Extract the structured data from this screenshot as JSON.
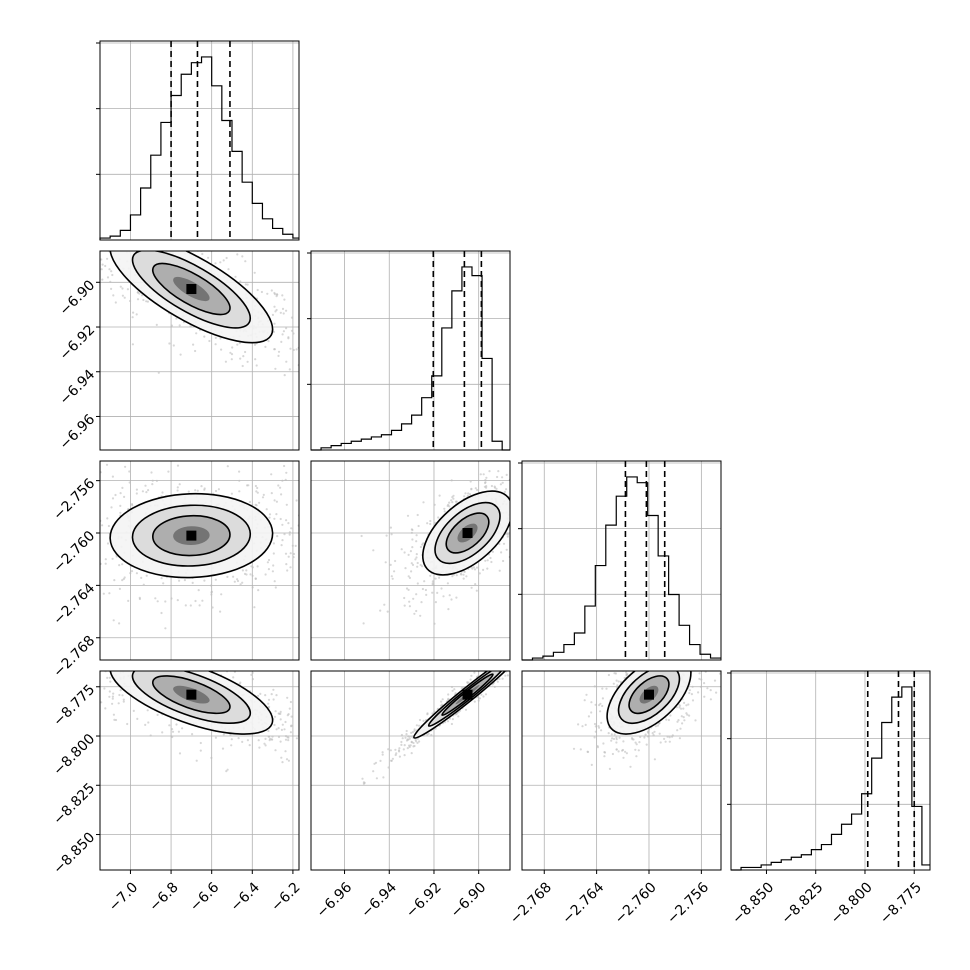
{
  "chart_data": {
    "type": "corner",
    "parameters": 4,
    "grid": true,
    "histograms": [
      {
        "param": 0,
        "range": [
          -7.15,
          -6.17
        ],
        "quantiles": [
          -6.8,
          -6.67,
          -6.51
        ],
        "bin_edges": [
          -7.15,
          -7.1,
          -7.05,
          -7.0,
          -6.95,
          -6.9,
          -6.85,
          -6.8,
          -6.75,
          -6.7,
          -6.65,
          -6.6,
          -6.55,
          -6.5,
          -6.45,
          -6.4,
          -6.35,
          -6.3,
          -6.25,
          -6.2,
          -6.17
        ],
        "counts": [
          0.01,
          0.02,
          0.05,
          0.13,
          0.27,
          0.44,
          0.61,
          0.75,
          0.86,
          0.92,
          0.95,
          0.8,
          0.62,
          0.46,
          0.3,
          0.19,
          0.11,
          0.06,
          0.03,
          0.01
        ]
      },
      {
        "param": 1,
        "range": [
          -6.975,
          -6.886
        ],
        "quantiles": [
          -6.9203,
          -6.9064,
          -6.8988
        ],
        "bin_edges": [
          -6.975,
          -6.9705,
          -6.966,
          -6.9615,
          -6.957,
          -6.9525,
          -6.948,
          -6.9435,
          -6.939,
          -6.9345,
          -6.93,
          -6.9255,
          -6.921,
          -6.9165,
          -6.912,
          -6.9075,
          -6.903,
          -6.8985,
          -6.894,
          -6.8895,
          -6.886
        ],
        "counts": [
          0.0,
          0.01,
          0.02,
          0.03,
          0.04,
          0.05,
          0.06,
          0.07,
          0.09,
          0.12,
          0.16,
          0.24,
          0.34,
          0.56,
          0.73,
          0.84,
          0.8,
          0.42,
          0.04,
          0.0
        ]
      },
      {
        "param": 2,
        "range": [
          -2.7697,
          -2.7545
        ],
        "quantiles": [
          -2.7618,
          -2.7602,
          -2.7588
        ],
        "bin_edges": [
          -2.7697,
          -2.7689,
          -2.7681,
          -2.7673,
          -2.7665,
          -2.7657,
          -2.7649,
          -2.7641,
          -2.7633,
          -2.7625,
          -2.7617,
          -2.7609,
          -2.7601,
          -2.7593,
          -2.7585,
          -2.7577,
          -2.7569,
          -2.7561,
          -2.7553,
          -2.7545
        ],
        "counts": [
          0.0,
          0.01,
          0.02,
          0.04,
          0.08,
          0.14,
          0.28,
          0.49,
          0.7,
          0.85,
          0.95,
          0.92,
          0.75,
          0.54,
          0.34,
          0.18,
          0.08,
          0.03,
          0.01
        ]
      },
      {
        "param": 3,
        "range": [
          -8.868,
          -8.767
        ],
        "quantiles": [
          -8.7986,
          -8.783,
          -8.775
        ],
        "bin_edges": [
          -8.868,
          -8.8629,
          -8.8578,
          -8.8527,
          -8.8476,
          -8.8425,
          -8.8374,
          -8.8323,
          -8.8272,
          -8.8221,
          -8.817,
          -8.8119,
          -8.8068,
          -8.8017,
          -8.7966,
          -8.7915,
          -8.7864,
          -8.7813,
          -8.7762,
          -8.7711,
          -8.767
        ],
        "counts": [
          0.0,
          0.01,
          0.01,
          0.02,
          0.03,
          0.04,
          0.05,
          0.06,
          0.08,
          0.1,
          0.14,
          0.18,
          0.22,
          0.3,
          0.44,
          0.58,
          0.68,
          0.72,
          0.25,
          0.02
        ]
      }
    ],
    "pair_panels": [
      {
        "x_param": 0,
        "y_param": 1,
        "center": [
          -6.7,
          -6.903
        ],
        "spread": [
          0.2,
          0.012
        ],
        "corr": -0.75
      },
      {
        "x_param": 0,
        "y_param": 2,
        "center": [
          -6.7,
          -2.7602
        ],
        "spread": [
          0.2,
          0.0016
        ],
        "corr": 0.05
      },
      {
        "x_param": 1,
        "y_param": 2,
        "center": [
          -6.905,
          -2.76
        ],
        "spread": [
          0.01,
          0.0016
        ],
        "corr": 0.55
      },
      {
        "x_param": 0,
        "y_param": 3,
        "center": [
          -6.7,
          -8.779
        ],
        "spread": [
          0.2,
          0.01
        ],
        "corr": -0.65
      },
      {
        "x_param": 1,
        "y_param": 3,
        "center": [
          -6.905,
          -8.779
        ],
        "spread": [
          0.012,
          0.011
        ],
        "corr": 0.98
      },
      {
        "x_param": 2,
        "y_param": 3,
        "center": [
          -2.76,
          -8.779
        ],
        "spread": [
          0.0016,
          0.01
        ],
        "corr": 0.55
      }
    ],
    "axes": [
      {
        "param": 0,
        "ticks": [
          -7.0,
          -6.8,
          -6.6,
          -6.4,
          -6.2
        ],
        "tick_labels": [
          "−7.0",
          "−6.8",
          "−6.6",
          "−6.4",
          "−6.2"
        ]
      },
      {
        "param": 1,
        "ticks": [
          -6.96,
          -6.94,
          -6.92,
          -6.9
        ],
        "tick_labels": [
          "−6.96",
          "−6.94",
          "−6.92",
          "−6.90"
        ]
      },
      {
        "param": 2,
        "ticks": [
          -2.768,
          -2.764,
          -2.76,
          -2.756
        ],
        "tick_labels": [
          "−2.768",
          "−2.764",
          "−2.760",
          "−2.756"
        ]
      },
      {
        "param": 3,
        "ticks": [
          -8.85,
          -8.825,
          -8.8,
          -8.775
        ],
        "tick_labels": [
          "−8.850",
          "−8.825",
          "−8.800",
          "−8.775"
        ]
      }
    ],
    "colors": {
      "contour": "#000000",
      "scatter": "#bdbdbd",
      "grid": "#b0b0b0",
      "quantile_line": "#000000"
    }
  }
}
